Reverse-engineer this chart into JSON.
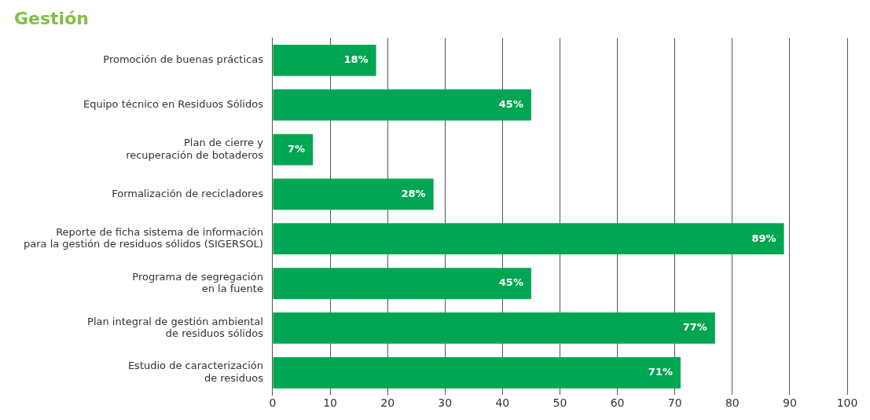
{
  "chart_data": {
    "type": "bar",
    "orientation": "horizontal",
    "title": "Gestión",
    "categories": [
      "Promoción de buenas prácticas",
      "Equipo técnico en Residuos Sólidos",
      "Plan de cierre y\nrecuperación de botaderos",
      "Formalización de recicladores",
      "Reporte de ficha sistema de información\npara la gestión de residuos sólidos (SIGERSOL)",
      "Programa de segregación\nen la fuente",
      "Plan integral de gestión ambiental\nde residuos sólidos",
      "Estudio de caracterización\nde residuos"
    ],
    "values": [
      18,
      45,
      7,
      28,
      89,
      45,
      77,
      71
    ],
    "value_labels": [
      "18%",
      "45%",
      "7%",
      "28%",
      "89%",
      "45%",
      "77%",
      "71%"
    ],
    "color": "#00a651",
    "xlim": [
      0,
      100
    ],
    "xticks": [
      0,
      10,
      20,
      30,
      40,
      50,
      60,
      70,
      80,
      90,
      100
    ],
    "grid": "x",
    "legend": false
  }
}
